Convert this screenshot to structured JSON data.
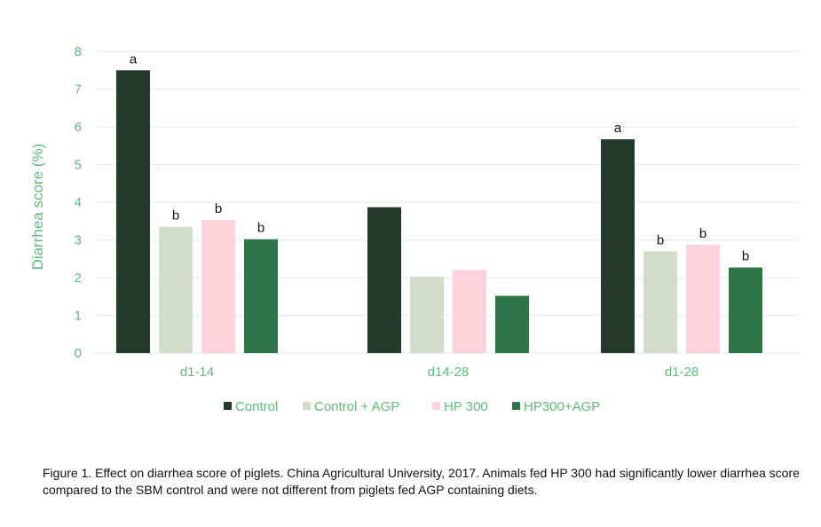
{
  "colors": {
    "axis_text": "#5fb87a",
    "grid": "#d9efe3",
    "label_text": "#111111"
  },
  "chart_data": {
    "type": "bar",
    "ylabel": "Diarrhea score (%)",
    "ylim": [
      0,
      8
    ],
    "yticks": [
      0,
      1,
      2,
      3,
      4,
      5,
      6,
      7,
      8
    ],
    "grid": true,
    "legend_position": "bottom",
    "categories": [
      "d1-14",
      "d14-28",
      "d1-28"
    ],
    "series": [
      {
        "name": "Control",
        "color": "#233a2d",
        "values": [
          7.5,
          3.87,
          5.67
        ],
        "labels": [
          "a",
          "",
          "a"
        ]
      },
      {
        "name": "Control + AGP",
        "color": "#d3dcc8",
        "values": [
          3.35,
          2.03,
          2.7
        ],
        "labels": [
          "b",
          "",
          "b"
        ]
      },
      {
        "name": "HP 300",
        "color": "#ffd1dc",
        "values": [
          3.53,
          2.2,
          2.87
        ],
        "labels": [
          "b",
          "",
          "b"
        ]
      },
      {
        "name": "HP300+AGP",
        "color": "#2f7446",
        "values": [
          3.02,
          1.52,
          2.27
        ],
        "labels": [
          "b",
          "",
          "b"
        ]
      }
    ]
  },
  "caption": "Figure 1. Effect on diarrhea score of piglets. China Agricultural University, 2017. Animals fed HP 300 had significantly lower diarrhea score compared to the SBM control and were not different from piglets fed AGP containing diets."
}
